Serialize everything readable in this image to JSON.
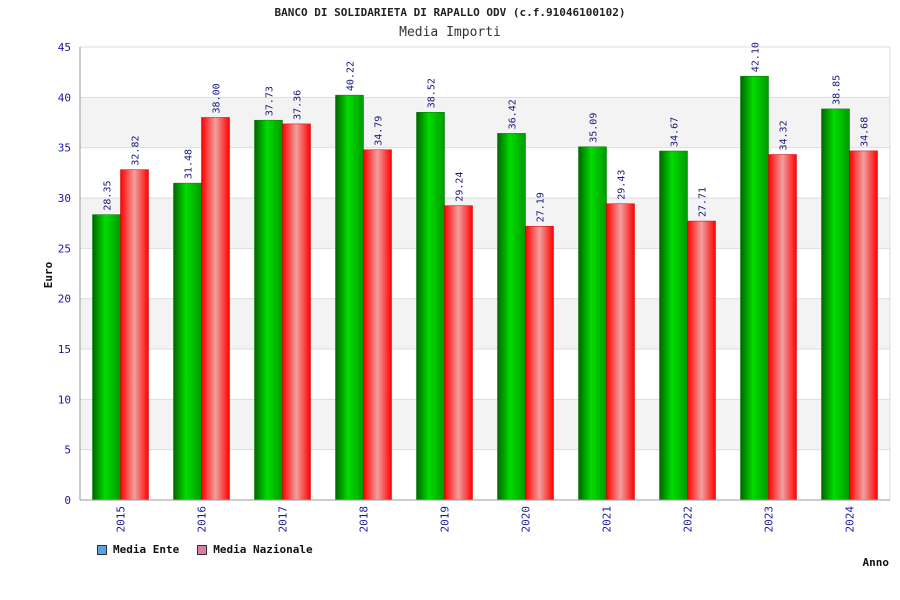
{
  "chart_data": {
    "type": "bar",
    "title": "BANCO DI SOLIDARIETA DI RAPALLO ODV (c.f.91046100102)",
    "subtitle": "Media Importi",
    "xlabel": "Anno",
    "ylabel": "Euro",
    "ylim": [
      0,
      45
    ],
    "yticks": [
      0,
      5,
      10,
      15,
      20,
      25,
      30,
      35,
      40,
      45
    ],
    "grid": true,
    "legend_placement": "bottom-left",
    "categories": [
      "2015",
      "2016",
      "2017",
      "2018",
      "2019",
      "2020",
      "2021",
      "2022",
      "2023",
      "2024"
    ],
    "series": [
      {
        "name": "Media Ente",
        "color": "#00aa00",
        "legend_color": "#5aa0e6",
        "values": [
          28.35,
          31.48,
          37.73,
          40.22,
          38.52,
          36.42,
          35.09,
          34.67,
          42.1,
          38.85
        ],
        "labels": [
          "28.35",
          "31.48",
          "37.73",
          "40.22",
          "38.52",
          "36.42",
          "35.09",
          "34.67",
          "42.10",
          "38.85"
        ]
      },
      {
        "name": "Media Nazionale",
        "color": "#ff0000",
        "legend_color": "#e07aa8",
        "values": [
          32.82,
          38.0,
          37.36,
          34.79,
          29.24,
          27.19,
          29.43,
          27.71,
          34.32,
          34.68
        ],
        "labels": [
          "32.82",
          "38.00",
          "37.36",
          "34.79",
          "29.24",
          "27.19",
          "29.43",
          "27.71",
          "34.32",
          "34.68"
        ]
      }
    ]
  }
}
